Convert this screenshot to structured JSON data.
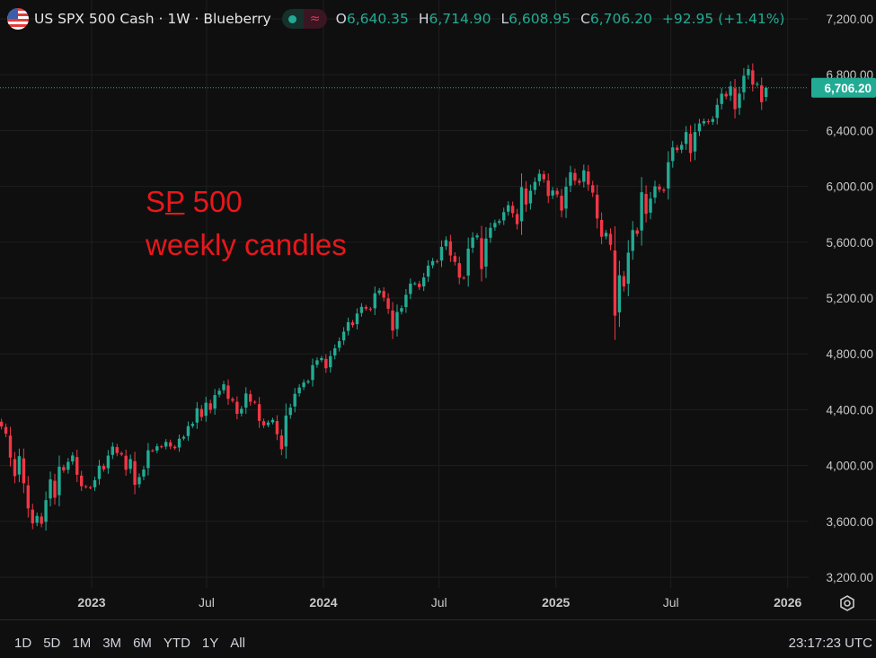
{
  "header": {
    "title": "US SPX 500 Cash · 1W · Blueberry",
    "icons": {
      "flag": "us-flag-icon",
      "market_open": "green-dot-icon",
      "delayed": "approx-icon"
    },
    "ohlc": {
      "o_label": "O",
      "o": "6,640.35",
      "h_label": "H",
      "h": "6,714.90",
      "l_label": "L",
      "l": "6,608.95",
      "c_label": "C",
      "c": "6,706.20",
      "change": "+92.95 (+1.41%)"
    }
  },
  "annotation": {
    "line1_a": "S",
    "line1_b": "P",
    "line1_c": " 500",
    "line2": "weekly candles",
    "color": "#e8171b"
  },
  "bottom": {
    "ranges": [
      "1D",
      "5D",
      "1M",
      "3M",
      "6M",
      "YTD",
      "1Y",
      "All"
    ],
    "clock": "23:17:23 UTC",
    "settings_icon": "gear-icon"
  },
  "chart_data": {
    "type": "candlestick",
    "interval": "1W",
    "x_start": "2022-08-12",
    "x_tick_labels": [
      "2023",
      "Jul",
      "2024",
      "Jul",
      "2025",
      "Jul",
      "2026"
    ],
    "x_tick_dates": [
      "2023-01-01",
      "2023-07-01",
      "2024-01-01",
      "2024-07-01",
      "2025-01-01",
      "2025-07-01",
      "2026-01-01"
    ],
    "y_tick_labels": [
      "7,200.00",
      "6,800.00",
      "6,400.00",
      "6,000.00",
      "5,600.00",
      "5,200.00",
      "4,800.00",
      "4,400.00",
      "4,000.00",
      "3,600.00",
      "3,200.00"
    ],
    "y_ticks": [
      7200,
      6800,
      6400,
      6000,
      5600,
      5200,
      4800,
      4400,
      4000,
      3600,
      3200
    ],
    "ylim": [
      3200,
      7200
    ],
    "grid": true,
    "last_price": 6706.2,
    "last_price_label": "6,706.20",
    "colors": {
      "up": "#22ab94",
      "down": "#f23645",
      "background": "#0f0f0f"
    },
    "last_candle": {
      "open": 6640.35,
      "high": 6714.9,
      "low": 6608.95,
      "close": 6706.2
    },
    "closes": [
      4280,
      4228,
      4057,
      3924,
      4067,
      3873,
      3693,
      3586,
      3639,
      3583,
      3752,
      3901,
      3770,
      3992,
      3965,
      4026,
      4072,
      3934,
      3852,
      3845,
      3840,
      3895,
      3999,
      3973,
      4071,
      4136,
      4090,
      4079,
      3970,
      4046,
      3862,
      3917,
      3971,
      4109,
      4105,
      4138,
      4133,
      4169,
      4136,
      4124,
      4192,
      4205,
      4282,
      4299,
      4410,
      4348,
      4450,
      4399,
      4505,
      4536,
      4582,
      4478,
      4464,
      4370,
      4406,
      4516,
      4457,
      4450,
      4320,
      4288,
      4308,
      4327,
      4224,
      4117,
      4358,
      4415,
      4514,
      4559,
      4595,
      4604,
      4719,
      4754,
      4770,
      4697,
      4784,
      4840,
      4891,
      4959,
      5027,
      5006,
      5089,
      5137,
      5124,
      5117,
      5234,
      5254,
      5204,
      5123,
      4967,
      5100,
      5128,
      5223,
      5303,
      5305,
      5278,
      5347,
      5432,
      5465,
      5460,
      5567,
      5615,
      5505,
      5459,
      5346,
      5344,
      5554,
      5634,
      5648,
      5408,
      5626,
      5703,
      5738,
      5751,
      5815,
      5865,
      5808,
      5729,
      5995,
      5870,
      5969,
      6032,
      6090,
      6051,
      5931,
      5970,
      5942,
      5827,
      5997,
      6101,
      6041,
      6026,
      6115,
      6013,
      5955,
      5770,
      5639,
      5667,
      5581,
      5074,
      5363,
      5283,
      5525,
      5687,
      5660,
      5958,
      5803,
      5912,
      6000,
      5977,
      5968,
      6173,
      6279,
      6260,
      6297,
      6389,
      6238,
      6389,
      6450,
      6467,
      6460,
      6482,
      6584,
      6664,
      6644,
      6716,
      6553,
      6664,
      6792,
      6840,
      6729,
      6734,
      6603,
      6706.2
    ]
  }
}
